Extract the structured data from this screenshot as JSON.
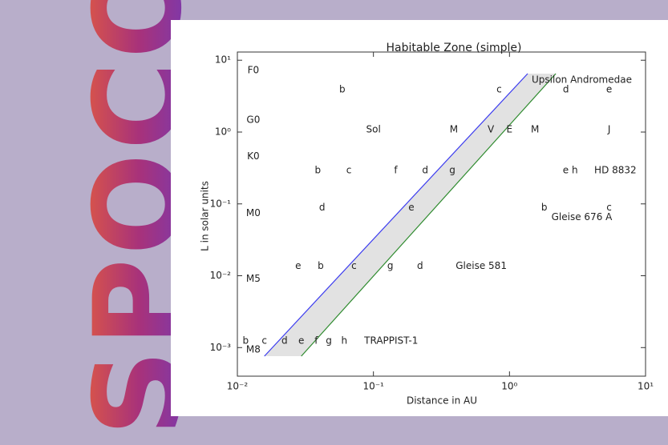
{
  "logo": "SPOCON",
  "chart_data": {
    "type": "line",
    "title": "Habitable Zone (simple)",
    "xlabel": "Distance in AU",
    "ylabel": "L in solar units",
    "xlog": true,
    "ylog": true,
    "xlim": [
      0.01,
      10
    ],
    "ylim": [
      0.0004,
      13
    ],
    "xticks": [
      {
        "value": 0.01,
        "label": "10⁻²"
      },
      {
        "value": 0.1,
        "label": "10⁻¹"
      },
      {
        "value": 1,
        "label": "10⁰"
      },
      {
        "value": 10,
        "label": "10¹"
      }
    ],
    "yticks": [
      {
        "value": 0.001,
        "label": "10⁻³"
      },
      {
        "value": 0.01,
        "label": "10⁻²"
      },
      {
        "value": 0.1,
        "label": "10⁻¹"
      },
      {
        "value": 1,
        "label": "10⁰"
      },
      {
        "value": 10,
        "label": "10¹"
      }
    ],
    "band_color": "#e2e2e2",
    "series": [
      {
        "color": "#3b3bf0",
        "x": [
          0.0158,
          1.36
        ],
        "values": [
          0.00076,
          6.5
        ]
      },
      {
        "color": "#2e8b2e",
        "x": [
          0.0295,
          2.19
        ],
        "values": [
          0.00076,
          6.5
        ]
      }
    ],
    "annotations": [
      {
        "text": "F0",
        "x": 0.0131,
        "y": 7.2
      },
      {
        "text": "b",
        "x": 0.059,
        "y": 3.9
      },
      {
        "text": "c",
        "x": 0.84,
        "y": 3.9
      },
      {
        "text": "Upsilon Andromedae",
        "x": 3.4,
        "y": 5.3
      },
      {
        "text": "d",
        "x": 2.6,
        "y": 3.9
      },
      {
        "text": "e",
        "x": 5.4,
        "y": 3.9
      },
      {
        "text": "G0",
        "x": 0.0131,
        "y": 1.47
      },
      {
        "text": "Sol",
        "x": 0.1,
        "y": 1.08
      },
      {
        "text": "M",
        "x": 0.39,
        "y": 1.08
      },
      {
        "text": "V",
        "x": 0.73,
        "y": 1.08
      },
      {
        "text": "E",
        "x": 1.0,
        "y": 1.08
      },
      {
        "text": "M",
        "x": 1.54,
        "y": 1.08
      },
      {
        "text": "J",
        "x": 5.4,
        "y": 1.08
      },
      {
        "text": "K0",
        "x": 0.0131,
        "y": 0.46
      },
      {
        "text": "b",
        "x": 0.039,
        "y": 0.29
      },
      {
        "text": "c",
        "x": 0.066,
        "y": 0.29
      },
      {
        "text": "f",
        "x": 0.146,
        "y": 0.29
      },
      {
        "text": "d",
        "x": 0.24,
        "y": 0.29
      },
      {
        "text": "g",
        "x": 0.38,
        "y": 0.29
      },
      {
        "text": "e h",
        "x": 2.8,
        "y": 0.29
      },
      {
        "text": "HD 8832",
        "x": 6.0,
        "y": 0.29
      },
      {
        "text": "d",
        "x": 0.042,
        "y": 0.088
      },
      {
        "text": "e",
        "x": 0.19,
        "y": 0.088
      },
      {
        "text": "b",
        "x": 1.8,
        "y": 0.088
      },
      {
        "text": "c",
        "x": 5.4,
        "y": 0.088
      },
      {
        "text": "Gleise 676 A",
        "x": 3.4,
        "y": 0.065
      },
      {
        "text": "M0",
        "x": 0.0131,
        "y": 0.074
      },
      {
        "text": "e",
        "x": 0.028,
        "y": 0.0136
      },
      {
        "text": "b",
        "x": 0.041,
        "y": 0.0136
      },
      {
        "text": "c",
        "x": 0.072,
        "y": 0.0136
      },
      {
        "text": "g",
        "x": 0.133,
        "y": 0.0136
      },
      {
        "text": "d",
        "x": 0.22,
        "y": 0.0136
      },
      {
        "text": "Gleise 581",
        "x": 0.62,
        "y": 0.0136
      },
      {
        "text": "M5",
        "x": 0.0131,
        "y": 0.009
      },
      {
        "text": "b",
        "x": 0.0115,
        "y": 0.00123
      },
      {
        "text": "c",
        "x": 0.0158,
        "y": 0.00123
      },
      {
        "text": "d",
        "x": 0.0222,
        "y": 0.00123
      },
      {
        "text": "e",
        "x": 0.0295,
        "y": 0.00123
      },
      {
        "text": "f",
        "x": 0.038,
        "y": 0.00123
      },
      {
        "text": "g",
        "x": 0.047,
        "y": 0.00123
      },
      {
        "text": "h",
        "x": 0.061,
        "y": 0.00123
      },
      {
        "text": "TRAPPIST-1",
        "x": 0.135,
        "y": 0.00123
      },
      {
        "text": "M8",
        "x": 0.0131,
        "y": 0.00093
      }
    ]
  }
}
